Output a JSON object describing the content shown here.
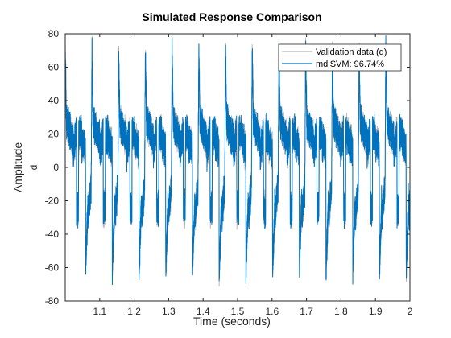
{
  "chart_data": {
    "type": "line",
    "title": "Simulated Response Comparison",
    "xlabel": "Time (seconds)",
    "ylabel": "Amplitude",
    "ylabel_sub": "d",
    "xlim": [
      1.0,
      2.0
    ],
    "ylim": [
      -80,
      80
    ],
    "xticks": [
      1.1,
      1.2,
      1.3,
      1.4,
      1.5,
      1.6,
      1.7,
      1.8,
      1.9,
      2
    ],
    "xtick_labels": [
      "1.1",
      "1.2",
      "1.3",
      "1.4",
      "1.5",
      "1.6",
      "1.7",
      "1.8",
      "1.9",
      "2"
    ],
    "yticks": [
      -80,
      -60,
      -40,
      -20,
      0,
      20,
      40,
      60,
      80
    ],
    "ytick_labels": [
      "-80",
      "-60",
      "-40",
      "-20",
      "0",
      "20",
      "40",
      "60",
      "80"
    ],
    "grid": false,
    "legend_position": "top-right",
    "series": [
      {
        "name": "Validation data (d)",
        "color": "#b3b3b3",
        "cycle": {
          "period": 0.0775,
          "first_peak": 1.0,
          "peak": 70,
          "plateau": 20,
          "trough": -62,
          "dropout": -25
        }
      },
      {
        "name": "mdlSVM: 96.74%",
        "color": "#0072bd",
        "cycle": {
          "period": 0.0775,
          "first_peak": 1.0,
          "peak": 70,
          "plateau": 20,
          "trough": -62,
          "dropout": -25
        }
      }
    ]
  }
}
